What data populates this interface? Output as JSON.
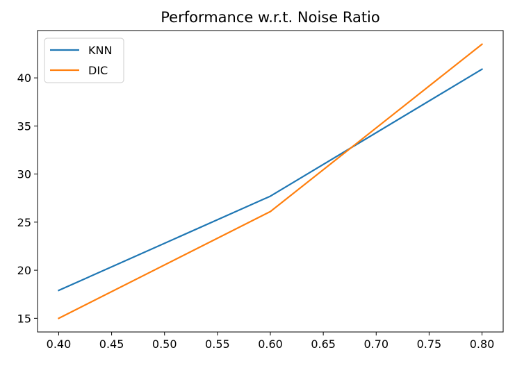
{
  "chart_data": {
    "type": "line",
    "title": "Performance w.r.t. Noise Ratio",
    "xlabel": "",
    "ylabel": "",
    "x": [
      0.4,
      0.6,
      0.8
    ],
    "xlim": [
      0.38,
      0.82
    ],
    "ylim": [
      13.58,
      44.92
    ],
    "xticks": [
      "0.40",
      "0.45",
      "0.50",
      "0.55",
      "0.60",
      "0.65",
      "0.70",
      "0.75",
      "0.80"
    ],
    "yticks": [
      "15",
      "20",
      "25",
      "30",
      "35",
      "40"
    ],
    "grid": false,
    "legend_position": "top-left",
    "series": [
      {
        "name": "KNN",
        "color": "#1f77b4",
        "values": [
          17.9,
          27.7,
          40.9
        ]
      },
      {
        "name": "DIC",
        "color": "#ff7f0e",
        "values": [
          15.0,
          26.1,
          43.5
        ]
      }
    ]
  }
}
